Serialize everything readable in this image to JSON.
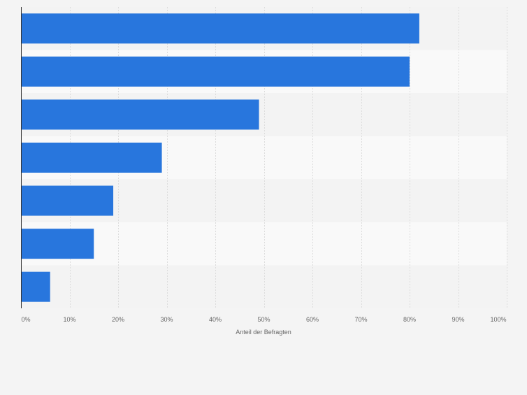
{
  "chart_data": {
    "type": "bar",
    "orientation": "horizontal",
    "categories": [
      "",
      "",
      "",
      "",
      "",
      "",
      ""
    ],
    "values": [
      82,
      80,
      49,
      29,
      19,
      15,
      6
    ],
    "title": "",
    "xlabel": "Anteil der Befragten",
    "ylabel": "",
    "xlim": [
      0,
      100
    ],
    "xticks": [
      0,
      10,
      20,
      30,
      40,
      50,
      60,
      70,
      80,
      90,
      100
    ],
    "xtick_labels": [
      "0%",
      "10%",
      "20%",
      "30%",
      "40%",
      "50%",
      "60%",
      "70%",
      "80%",
      "90%",
      "100%"
    ],
    "grid": true,
    "legend": "none",
    "colors": {
      "bar": "#2876dd",
      "band_light": "#f9f9f9",
      "band_dark": "#f3f3f3",
      "grid": "#dcdcdc",
      "axis": "#333333",
      "tick_text": "#666666"
    }
  }
}
